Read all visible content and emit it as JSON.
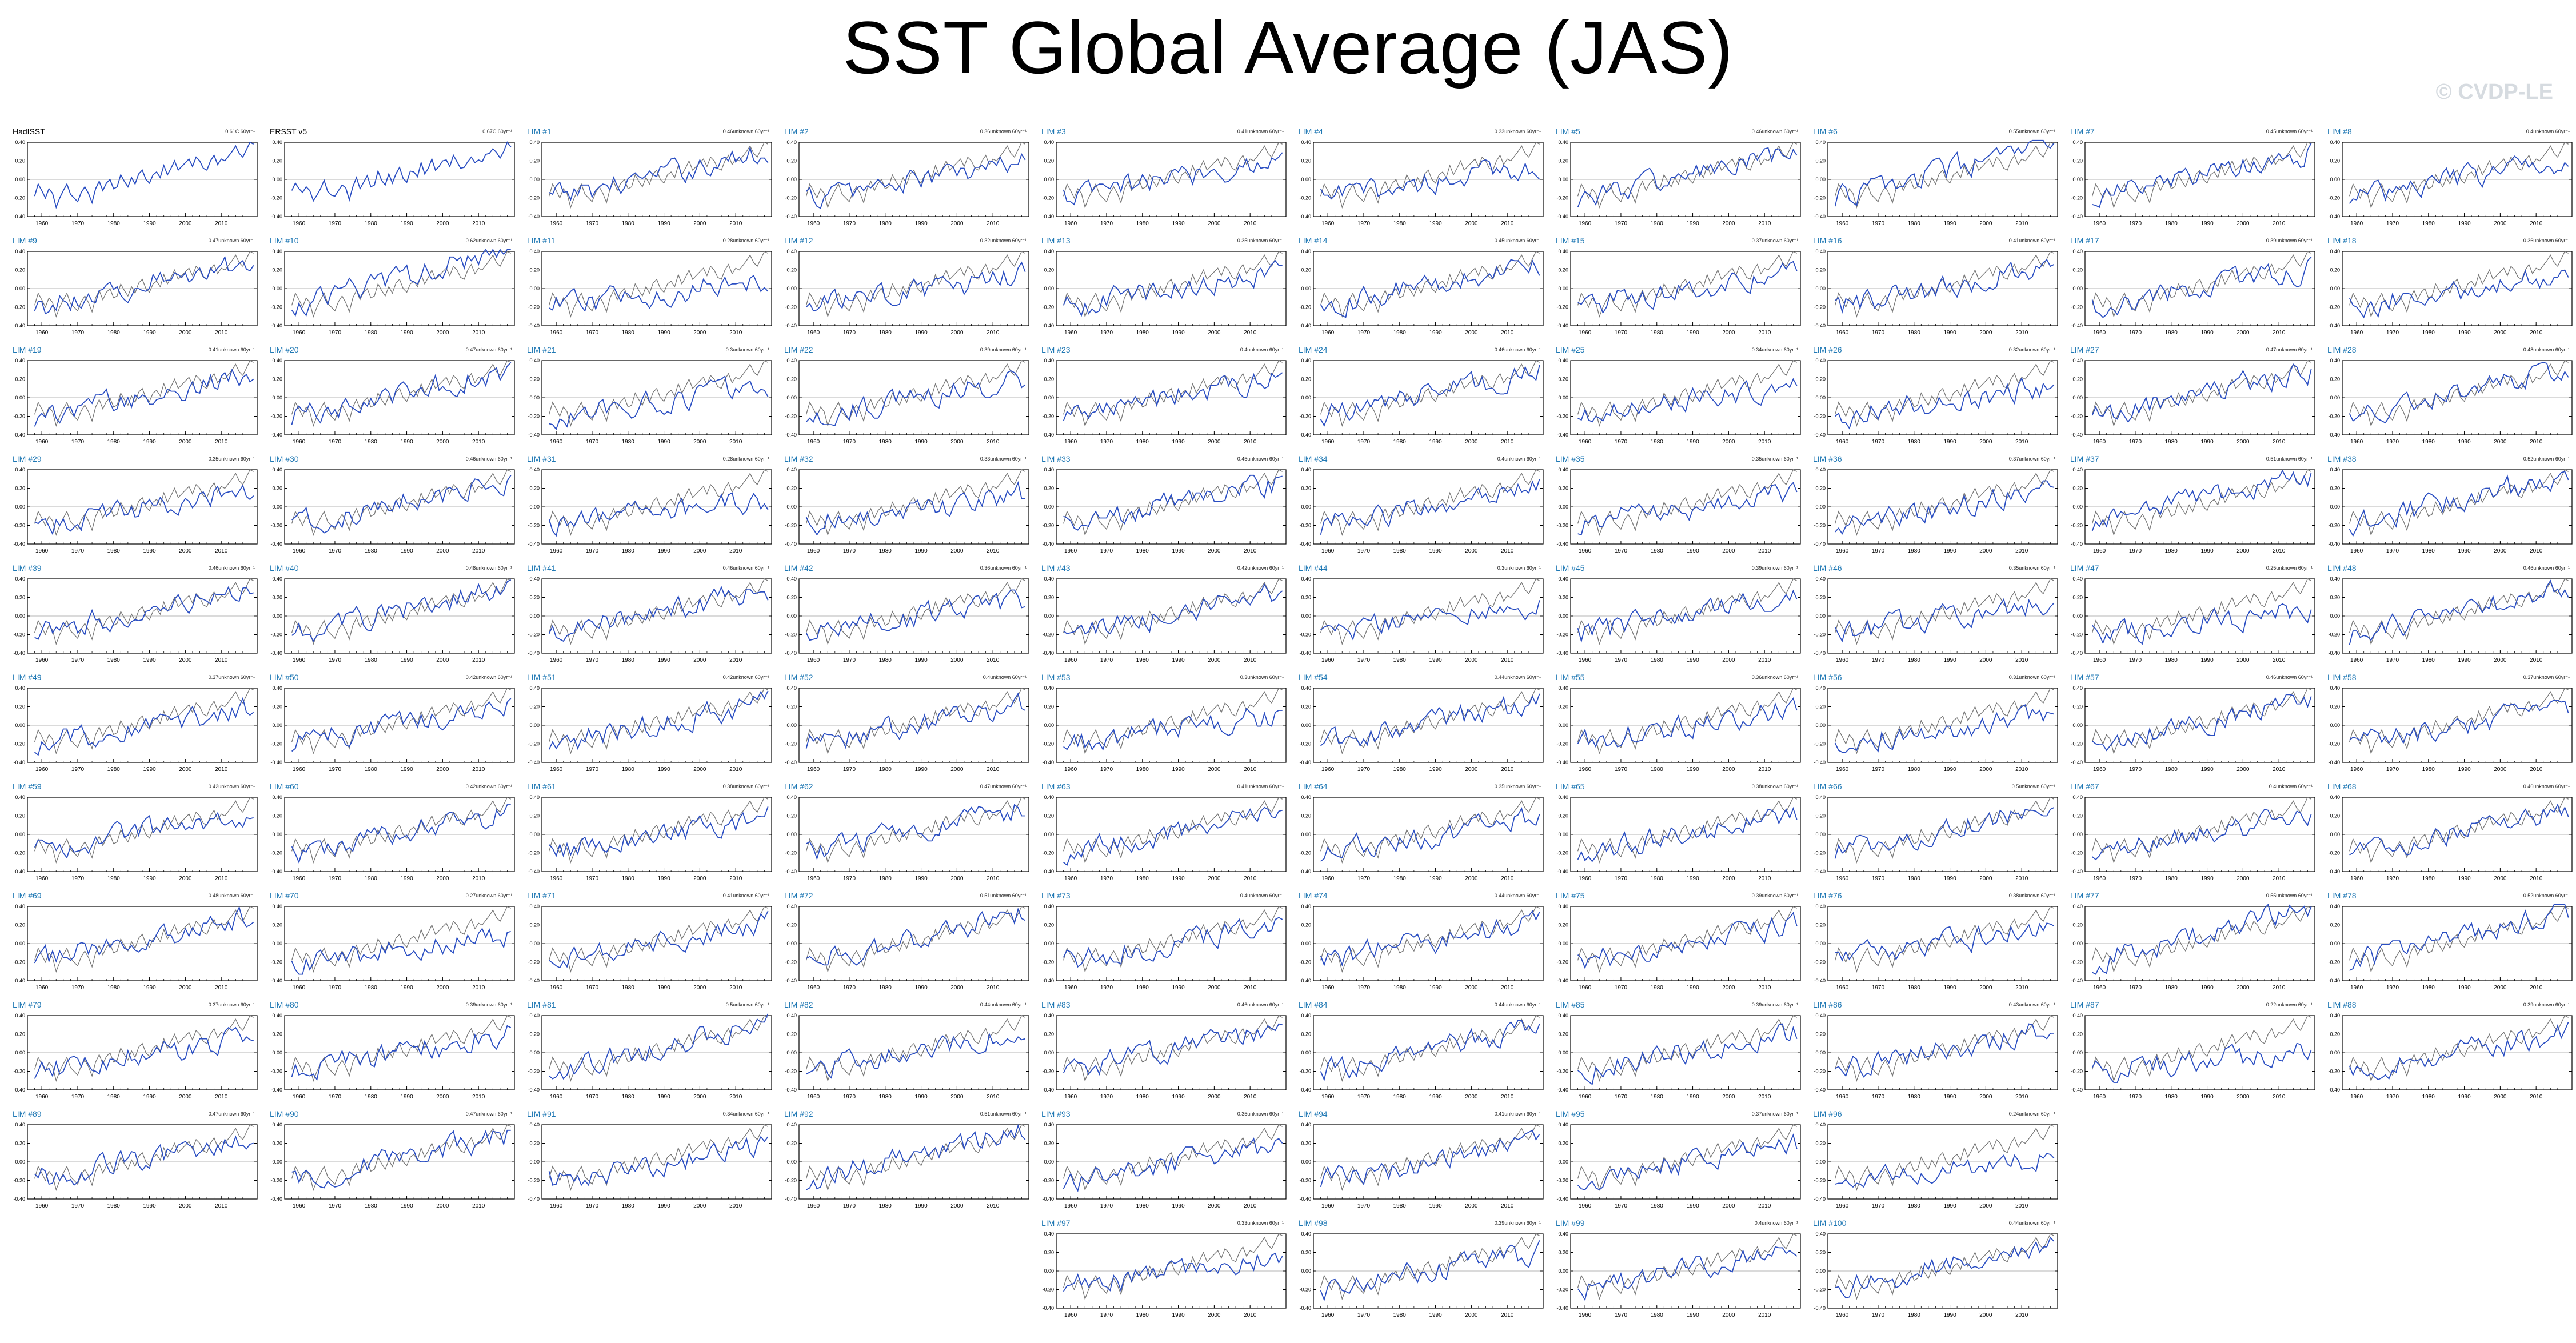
{
  "title": "SST Global Average (JAS)",
  "watermark": "© CVDP-LE",
  "colors": {
    "background": "#ffffff",
    "obs_line": "#777777",
    "member_line": "#2a4ec2",
    "member_label": "#1f78b4",
    "obs_label": "#000000",
    "zero_line": "#b5b5b5",
    "title": "#000000"
  },
  "chart_data": {
    "type": "line",
    "layout": "small multiples, 10 columns",
    "xlim": [
      1956,
      2020
    ],
    "ylim": [
      -0.4,
      0.4
    ],
    "xticks": [
      1960,
      1970,
      1980,
      1990,
      2000,
      2010
    ],
    "yticks": [
      "0.40",
      "0.20",
      "0.00",
      "-0.20",
      "-0.40"
    ],
    "years_start": 1958,
    "years_end": 2019,
    "obs_series": [
      -0.18,
      -0.05,
      -0.12,
      -0.2,
      -0.1,
      -0.15,
      -0.3,
      -0.2,
      -0.12,
      -0.05,
      -0.16,
      -0.2,
      -0.24,
      -0.14,
      -0.08,
      -0.15,
      -0.25,
      -0.1,
      -0.02,
      -0.12,
      -0.04,
      0.0,
      -0.1,
      -0.08,
      0.05,
      -0.02,
      -0.08,
      0.02,
      -0.05,
      0.06,
      0.1,
      0.0,
      -0.04,
      0.05,
      0.08,
      0.02,
      0.15,
      0.05,
      0.12,
      0.2,
      0.1,
      0.14,
      0.18,
      0.22,
      0.14,
      0.24,
      0.2,
      0.12,
      0.1,
      0.2,
      0.26,
      0.16,
      0.22,
      0.2,
      0.25,
      0.3,
      0.36,
      0.28,
      0.24,
      0.32,
      0.4,
      0.38
    ],
    "panels": [
      {
        "label": "HadISST",
        "trend": "0.61C 60yr⁻¹",
        "kind": "obs"
      },
      {
        "label": "ERSST v5",
        "trend": "0.67C 60yr⁻¹",
        "kind": "obs"
      },
      {
        "label": "LIM #1",
        "trend": "0.46unknown 60yr⁻¹"
      },
      {
        "label": "LIM #2",
        "trend": "0.36unknown 60yr⁻¹"
      },
      {
        "label": "LIM #3",
        "trend": "0.41unknown 60yr⁻¹"
      },
      {
        "label": "LIM #4",
        "trend": "0.33unknown 60yr⁻¹"
      },
      {
        "label": "LIM #5",
        "trend": "0.46unknown 60yr⁻¹"
      },
      {
        "label": "LIM #6",
        "trend": "0.55unknown 60yr⁻¹"
      },
      {
        "label": "LIM #7",
        "trend": "0.45unknown 60yr⁻¹"
      },
      {
        "label": "LIM #8",
        "trend": "0.4unknown 60yr⁻¹"
      },
      {
        "label": "LIM #9",
        "trend": "0.47unknown 60yr⁻¹"
      },
      {
        "label": "LIM #10",
        "trend": "0.62unknown 60yr⁻¹"
      },
      {
        "label": "LIM #11",
        "trend": "0.28unknown 60yr⁻¹"
      },
      {
        "label": "LIM #12",
        "trend": "0.32unknown 60yr⁻¹"
      },
      {
        "label": "LIM #13",
        "trend": "0.35unknown 60yr⁻¹"
      },
      {
        "label": "LIM #14",
        "trend": "0.45unknown 60yr⁻¹"
      },
      {
        "label": "LIM #15",
        "trend": "0.37unknown 60yr⁻¹"
      },
      {
        "label": "LIM #16",
        "trend": "0.41unknown 60yr⁻¹"
      },
      {
        "label": "LIM #17",
        "trend": "0.39unknown 60yr⁻¹"
      },
      {
        "label": "LIM #18",
        "trend": "0.36unknown 60yr⁻¹"
      },
      {
        "label": "LIM #19",
        "trend": "0.41unknown 60yr⁻¹"
      },
      {
        "label": "LIM #20",
        "trend": "0.47unknown 60yr⁻¹"
      },
      {
        "label": "LIM #21",
        "trend": "0.3unknown 60yr⁻¹"
      },
      {
        "label": "LIM #22",
        "trend": "0.39unknown 60yr⁻¹"
      },
      {
        "label": "LIM #23",
        "trend": "0.4unknown 60yr⁻¹"
      },
      {
        "label": "LIM #24",
        "trend": "0.46unknown 60yr⁻¹"
      },
      {
        "label": "LIM #25",
        "trend": "0.34unknown 60yr⁻¹"
      },
      {
        "label": "LIM #26",
        "trend": "0.32unknown 60yr⁻¹"
      },
      {
        "label": "LIM #27",
        "trend": "0.47unknown 60yr⁻¹"
      },
      {
        "label": "LIM #28",
        "trend": "0.48unknown 60yr⁻¹"
      },
      {
        "label": "LIM #29",
        "trend": "0.35unknown 60yr⁻¹"
      },
      {
        "label": "LIM #30",
        "trend": "0.46unknown 60yr⁻¹"
      },
      {
        "label": "LIM #31",
        "trend": "0.28unknown 60yr⁻¹"
      },
      {
        "label": "LIM #32",
        "trend": "0.33unknown 60yr⁻¹"
      },
      {
        "label": "LIM #33",
        "trend": "0.45unknown 60yr⁻¹"
      },
      {
        "label": "LIM #34",
        "trend": "0.4unknown 60yr⁻¹"
      },
      {
        "label": "LIM #35",
        "trend": "0.35unknown 60yr⁻¹"
      },
      {
        "label": "LIM #36",
        "trend": "0.37unknown 60yr⁻¹"
      },
      {
        "label": "LIM #37",
        "trend": "0.51unknown 60yr⁻¹"
      },
      {
        "label": "LIM #38",
        "trend": "0.52unknown 60yr⁻¹"
      },
      {
        "label": "LIM #39",
        "trend": "0.46unknown 60yr⁻¹"
      },
      {
        "label": "LIM #40",
        "trend": "0.48unknown 60yr⁻¹"
      },
      {
        "label": "LIM #41",
        "trend": "0.46unknown 60yr⁻¹"
      },
      {
        "label": "LIM #42",
        "trend": "0.36unknown 60yr⁻¹"
      },
      {
        "label": "LIM #43",
        "trend": "0.42unknown 60yr⁻¹"
      },
      {
        "label": "LIM #44",
        "trend": "0.3unknown 60yr⁻¹"
      },
      {
        "label": "LIM #45",
        "trend": "0.39unknown 60yr⁻¹"
      },
      {
        "label": "LIM #46",
        "trend": "0.35unknown 60yr⁻¹"
      },
      {
        "label": "LIM #47",
        "trend": "0.25unknown 60yr⁻¹"
      },
      {
        "label": "LIM #48",
        "trend": "0.46unknown 60yr⁻¹"
      },
      {
        "label": "LIM #49",
        "trend": "0.37unknown 60yr⁻¹"
      },
      {
        "label": "LIM #50",
        "trend": "0.42unknown 60yr⁻¹"
      },
      {
        "label": "LIM #51",
        "trend": "0.42unknown 60yr⁻¹"
      },
      {
        "label": "LIM #52",
        "trend": "0.4unknown 60yr⁻¹"
      },
      {
        "label": "LIM #53",
        "trend": "0.3unknown 60yr⁻¹"
      },
      {
        "label": "LIM #54",
        "trend": "0.44unknown 60yr⁻¹"
      },
      {
        "label": "LIM #55",
        "trend": "0.36unknown 60yr⁻¹"
      },
      {
        "label": "LIM #56",
        "trend": "0.31unknown 60yr⁻¹"
      },
      {
        "label": "LIM #57",
        "trend": "0.46unknown 60yr⁻¹"
      },
      {
        "label": "LIM #58",
        "trend": "0.37unknown 60yr⁻¹"
      },
      {
        "label": "LIM #59",
        "trend": "0.42unknown 60yr⁻¹"
      },
      {
        "label": "LIM #60",
        "trend": "0.42unknown 60yr⁻¹"
      },
      {
        "label": "LIM #61",
        "trend": "0.38unknown 60yr⁻¹"
      },
      {
        "label": "LIM #62",
        "trend": "0.47unknown 60yr⁻¹"
      },
      {
        "label": "LIM #63",
        "trend": "0.41unknown 60yr⁻¹"
      },
      {
        "label": "LIM #64",
        "trend": "0.35unknown 60yr⁻¹"
      },
      {
        "label": "LIM #65",
        "trend": "0.38unknown 60yr⁻¹"
      },
      {
        "label": "LIM #66",
        "trend": "0.5unknown 60yr⁻¹"
      },
      {
        "label": "LIM #67",
        "trend": "0.4unknown 60yr⁻¹"
      },
      {
        "label": "LIM #68",
        "trend": "0.46unknown 60yr⁻¹"
      },
      {
        "label": "LIM #69",
        "trend": "0.48unknown 60yr⁻¹"
      },
      {
        "label": "LIM #70",
        "trend": "0.27unknown 60yr⁻¹"
      },
      {
        "label": "LIM #71",
        "trend": "0.41unknown 60yr⁻¹"
      },
      {
        "label": "LIM #72",
        "trend": "0.51unknown 60yr⁻¹"
      },
      {
        "label": "LIM #73",
        "trend": "0.4unknown 60yr⁻¹"
      },
      {
        "label": "LIM #74",
        "trend": "0.44unknown 60yr⁻¹"
      },
      {
        "label": "LIM #75",
        "trend": "0.39unknown 60yr⁻¹"
      },
      {
        "label": "LIM #76",
        "trend": "0.38unknown 60yr⁻¹"
      },
      {
        "label": "LIM #77",
        "trend": "0.55unknown 60yr⁻¹"
      },
      {
        "label": "LIM #78",
        "trend": "0.52unknown 60yr⁻¹"
      },
      {
        "label": "LIM #79",
        "trend": "0.37unknown 60yr⁻¹"
      },
      {
        "label": "LIM #80",
        "trend": "0.39unknown 60yr⁻¹"
      },
      {
        "label": "LIM #81",
        "trend": "0.5unknown 60yr⁻¹"
      },
      {
        "label": "LIM #82",
        "trend": "0.44unknown 60yr⁻¹"
      },
      {
        "label": "LIM #83",
        "trend": "0.46unknown 60yr⁻¹"
      },
      {
        "label": "LIM #84",
        "trend": "0.44unknown 60yr⁻¹"
      },
      {
        "label": "LIM #85",
        "trend": "0.39unknown 60yr⁻¹"
      },
      {
        "label": "LIM #86",
        "trend": "0.43unknown 60yr⁻¹"
      },
      {
        "label": "LIM #87",
        "trend": "0.22unknown 60yr⁻¹"
      },
      {
        "label": "LIM #88",
        "trend": "0.39unknown 60yr⁻¹"
      },
      {
        "label": "LIM #89",
        "trend": "0.47unknown 60yr⁻¹"
      },
      {
        "label": "LIM #90",
        "trend": "0.47unknown 60yr⁻¹"
      },
      {
        "label": "LIM #91",
        "trend": "0.34unknown 60yr⁻¹"
      },
      {
        "label": "LIM #92",
        "trend": "0.51unknown 60yr⁻¹"
      },
      {
        "label": "LIM #93",
        "trend": "0.35unknown 60yr⁻¹"
      },
      {
        "label": "LIM #94",
        "trend": "0.41unknown 60yr⁻¹"
      },
      {
        "label": "LIM #95",
        "trend": "0.37unknown 60yr⁻¹"
      },
      {
        "label": "LIM #96",
        "trend": "0.24unknown 60yr⁻¹"
      },
      {
        "label": "LIM #97",
        "trend": "0.33unknown 60yr⁻¹"
      },
      {
        "label": "LIM #98",
        "trend": "0.39unknown 60yr⁻¹"
      },
      {
        "label": "LIM #99",
        "trend": "0.4unknown 60yr⁻¹"
      },
      {
        "label": "LIM #100",
        "trend": "0.44unknown 60yr⁻¹"
      }
    ]
  }
}
